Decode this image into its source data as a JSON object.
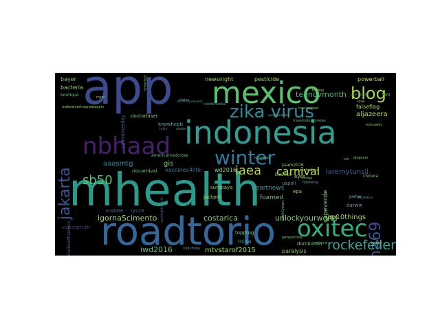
{
  "words": [
    {
      "text": "mhealth",
      "color": "#2a9a8a",
      "size": 1.0
    },
    {
      "text": "app",
      "color": "#3d4a8c",
      "size": 0.8
    },
    {
      "text": "roadtorio",
      "color": "#35689a",
      "size": 0.7
    },
    {
      "text": "indonesia",
      "color": "#2f9e93",
      "size": 0.62
    },
    {
      "text": "mexico",
      "color": "#56c46c",
      "size": 0.55
    },
    {
      "text": "nbhaad",
      "color": "#4a1f6e",
      "size": 0.42
    },
    {
      "text": "oxitec",
      "color": "#2fb27e",
      "size": 0.42
    },
    {
      "text": "zika virus",
      "color": "#2f8b9a",
      "size": 0.33
    },
    {
      "text": "blog",
      "color": "#a7d84a",
      "size": 0.3
    },
    {
      "text": "winter",
      "color": "#2f7aa0",
      "size": 0.3
    },
    {
      "text": "jakarta",
      "color": "#3b5a92",
      "size": 0.28
    },
    {
      "text": "wha69",
      "color": "#3c4f90",
      "size": 0.28
    },
    {
      "text": "rockefeller",
      "color": "#3aa79a",
      "size": 0.23
    },
    {
      "text": "sb50",
      "color": "#5bc064",
      "size": 0.2
    },
    {
      "text": "iaea",
      "color": "#b8d83b",
      "size": 0.2
    },
    {
      "text": "carnival",
      "color": "#c2dc45",
      "size": 0.18
    },
    {
      "text": "teendvmonth",
      "color": "#46b87a",
      "size": 0.14
    },
    {
      "text": "igornaScimento",
      "color": "#a5d856",
      "size": 0.14
    },
    {
      "text": "costarica",
      "color": "#8bd16b",
      "size": 0.13
    },
    {
      "text": "unlockyourworld",
      "color": "#7fcf72",
      "size": 0.13
    },
    {
      "text": "iwd2016",
      "color": "#6bc489",
      "size": 0.12
    },
    {
      "text": "mtvstarof2015",
      "color": "#a5d845",
      "size": 0.11
    },
    {
      "text": "aaasmtg",
      "color": "#2f8f9a",
      "size": 0.11
    },
    {
      "text": "laremytunsil",
      "color": "#3f5f9a",
      "size": 0.11
    },
    {
      "text": "aljazeera",
      "color": "#b8d846",
      "size": 0.1
    },
    {
      "text": "heartnews",
      "color": "#3e98a0",
      "size": 0.09
    },
    {
      "text": "ap10things",
      "color": "#a9d458",
      "size": 0.1
    },
    {
      "text": "gis",
      "color": "#7fc36f",
      "size": 0.1
    },
    {
      "text": "foamed",
      "color": "#6ec290",
      "size": 0.09
    },
    {
      "text": "capeverde",
      "color": "#82d068",
      "size": 0.09
    },
    {
      "text": "newsnight",
      "color": "#9fcf63",
      "size": 0.08
    },
    {
      "text": "pesticide",
      "color": "#a7d85c",
      "size": 0.08
    },
    {
      "text": "powerball",
      "color": "#bcd94d",
      "size": 0.08
    },
    {
      "text": "bacteria",
      "color": "#9fd25e",
      "size": 0.08
    },
    {
      "text": "bayer",
      "color": "#8dc56f",
      "size": 0.08
    },
    {
      "text": "falseflag",
      "color": "#9fd65a",
      "size": 0.08
    },
    {
      "text": "doctorlaser",
      "color": "#7ed170",
      "size": 0.07
    },
    {
      "text": "paralysis",
      "color": "#8ccf6c",
      "size": 0.08
    },
    {
      "text": "ncga",
      "color": "#3aa2a0",
      "size": 0.08
    },
    {
      "text": "topprog",
      "color": "#7ecc78",
      "size": 0.07
    },
    {
      "text": "dominican",
      "color": "#78c86f",
      "size": 0.07
    },
    {
      "text": "cholera",
      "color": "#6fc57a",
      "size": 0.06
    },
    {
      "text": "uspoli",
      "color": "#5a8fa0",
      "size": 0.07
    },
    {
      "text": "eyes",
      "color": "#a7d656",
      "size": 0.07
    },
    {
      "text": "epa",
      "color": "#8fd065",
      "size": 0.07
    },
    {
      "text": "darwin",
      "color": "#6f9aa8",
      "size": 0.07
    },
    {
      "text": "pwhw",
      "color": "#7aa6b0",
      "size": 0.06
    },
    {
      "text": "surabaya",
      "color": "#8fcf6a",
      "size": 0.07
    },
    {
      "text": "jackpot",
      "color": "#a9d659",
      "size": 0.07
    },
    {
      "text": "vaccines4life",
      "color": "#3a7e98",
      "size": 0.08
    },
    {
      "text": "wd2016",
      "color": "#8fd26c",
      "size": 0.08
    },
    {
      "text": "americanredcross",
      "color": "#6fc07a",
      "size": 0.06
    },
    {
      "text": "riocarnival",
      "color": "#7ccf72",
      "size": 0.07
    },
    {
      "text": "scstate",
      "color": "#3a7f9e",
      "size": 0.07
    },
    {
      "text": "rys16",
      "color": "#3f6f9a",
      "size": 0.07
    },
    {
      "text": "knowhepb",
      "color": "#5ea4a4",
      "size": 0.07
    },
    {
      "text": "valentinesday",
      "color": "#3d6fa0",
      "size": 0.07
    },
    {
      "text": "vapingtruth",
      "color": "#4a3d7e",
      "size": 0.07
    },
    {
      "text": "nationalhealthservice",
      "color": "#5a5c9a",
      "size": 0.06
    },
    {
      "text": "makeamericagreatagain",
      "color": "#8ccf6c",
      "size": 0.05
    },
    {
      "text": "boutique",
      "color": "#6bc07c",
      "size": 0.06
    },
    {
      "text": "msm",
      "color": "#a0d35c",
      "size": 0.05
    },
    {
      "text": "eyecandy",
      "color": "#7fc570",
      "size": 0.05
    },
    {
      "text": "hiphop",
      "color": "#a5d55b",
      "size": 0.05
    },
    {
      "text": "transmitted",
      "color": "#8fd068",
      "size": 0.05
    },
    {
      "text": "tbyg",
      "color": "#7ec472",
      "size": 0.05
    },
    {
      "text": "pharmacists",
      "color": "#6ba49a",
      "size": 0.04
    },
    {
      "text": "travelindustrynews",
      "color": "#6bb28c",
      "size": 0.05
    },
    {
      "text": "ethics",
      "color": "#8fcf6a",
      "size": 0.05
    },
    {
      "text": "crime",
      "color": "#7ec170",
      "size": 0.05
    },
    {
      "text": "psam2016",
      "color": "#8cce6c",
      "size": 0.06
    },
    {
      "text": "horovirus",
      "color": "#7aa9ae",
      "size": 0.05
    },
    {
      "text": "bio2016",
      "color": "#8fd068",
      "size": 0.06
    },
    {
      "text": "smokefree",
      "color": "#a8d35a",
      "size": 0.05
    },
    {
      "text": "healthystart",
      "color": "#6fbf84",
      "size": 0.05
    },
    {
      "text": "perspective",
      "color": "#8acd6c",
      "size": 0.05
    },
    {
      "text": "antiviral",
      "color": "#6fb48c",
      "size": 0.05
    },
    {
      "text": "brains",
      "color": "#8fd068",
      "size": 0.05
    },
    {
      "text": "midufinga",
      "color": "#5f8ca0",
      "size": 0.05
    },
    {
      "text": "spotlighthealth",
      "color": "#5a5e9a",
      "size": 0.05
    },
    {
      "text": "longread",
      "color": "#7ec472",
      "size": 0.05
    },
    {
      "text": "ctv",
      "color": "#7fd070",
      "size": 0.05
    },
    {
      "text": "stopcmv",
      "color": "#8fcf6a",
      "size": 0.05
    },
    {
      "text": "states",
      "color": "#6aa09a",
      "size": 0.05
    },
    {
      "text": "lotto",
      "color": "#5e6ca0",
      "size": 0.05
    },
    {
      "text": "vision",
      "color": "#5a98a4",
      "size": 0.05
    },
    {
      "text": "dominicanrepublic",
      "color": "#5e9aa0",
      "size": 0.04
    },
    {
      "text": "nobitenozika",
      "color": "#5aa0a4",
      "size": 0.05
    },
    {
      "text": "cyclonewinston",
      "color": "#6fb28c",
      "size": 0.04
    },
    {
      "text": "love",
      "color": "#8fcf6a",
      "size": 0.05
    },
    {
      "text": "biomedical",
      "color": "#6fa6a0",
      "size": 0.04
    },
    {
      "text": "hmm3d3",
      "color": "#7fc472",
      "size": 0.05
    }
  ]
}
